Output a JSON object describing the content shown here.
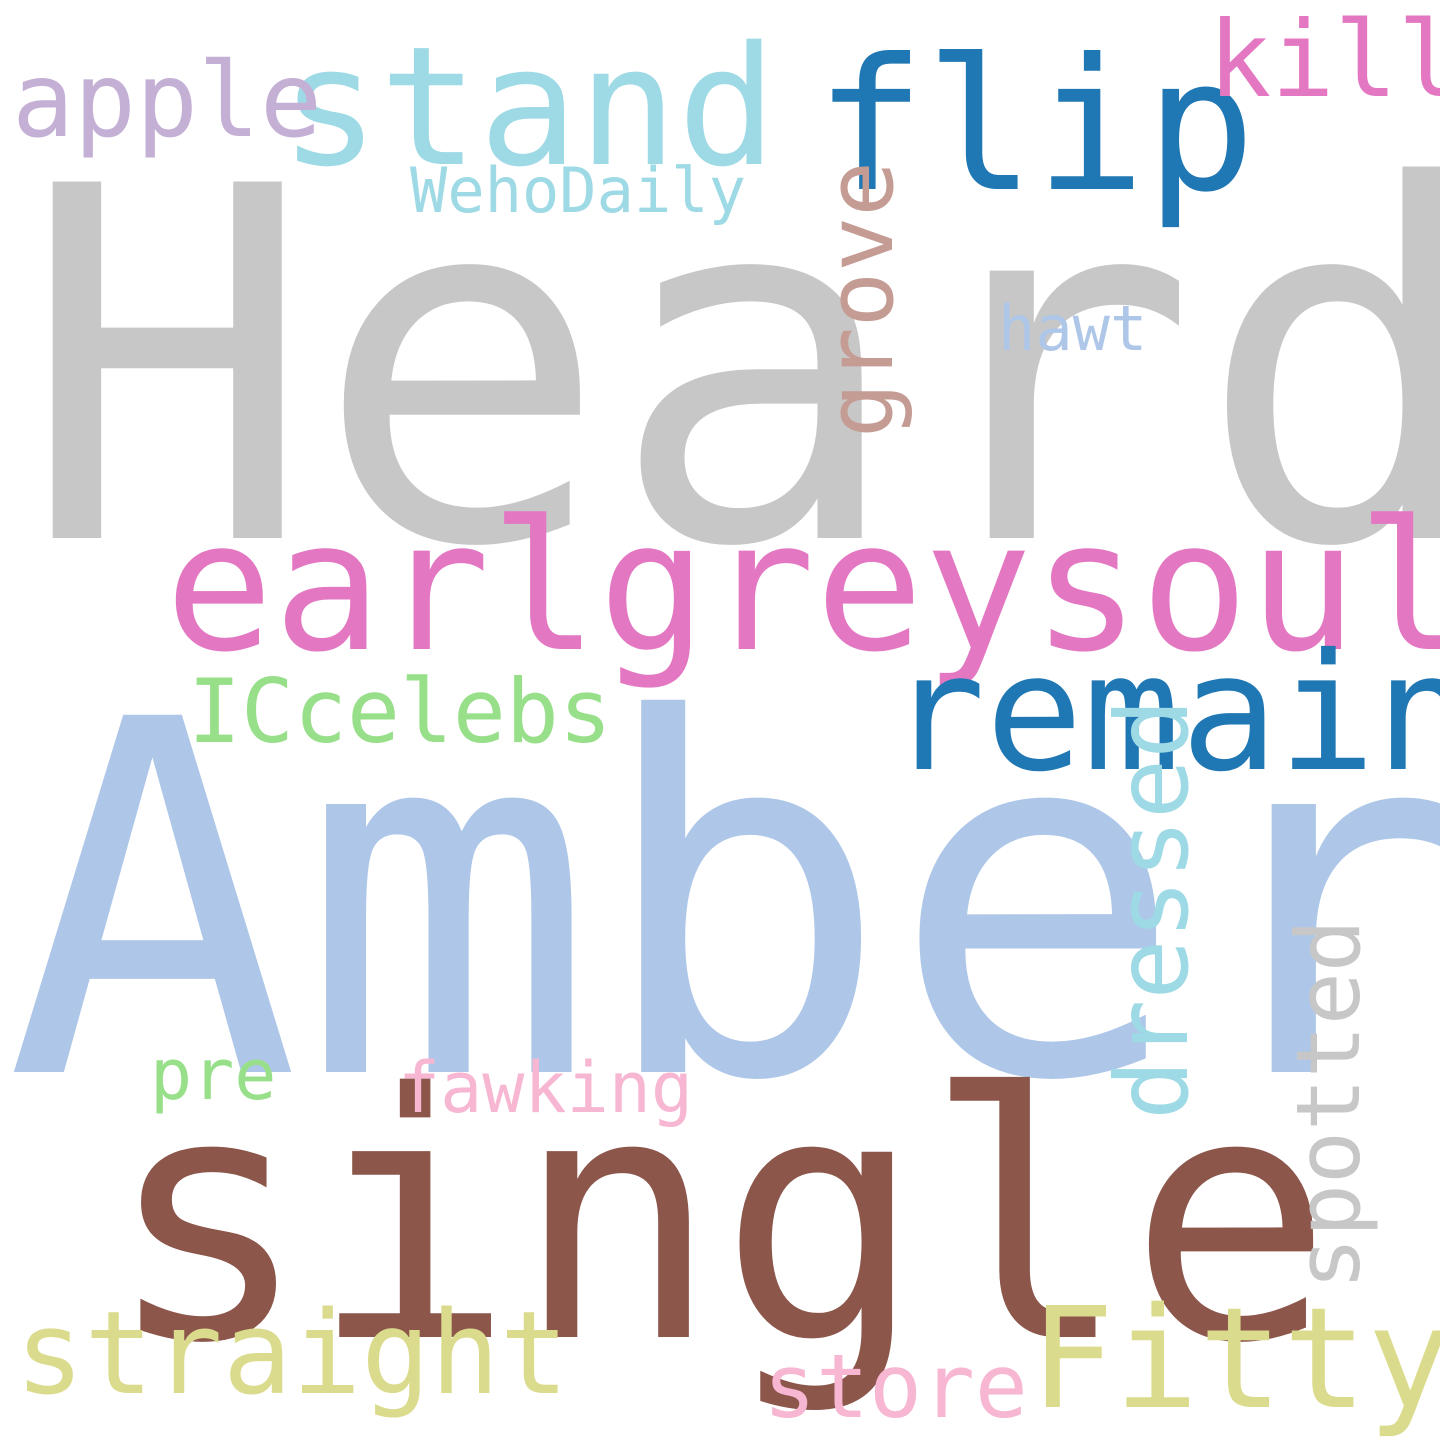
{
  "background": "#ffffff",
  "words": [
    {
      "id": "heard",
      "text": "Heard",
      "color": "#c7c7c7"
    },
    {
      "id": "amber",
      "text": "Amber",
      "color": "#aec7e8"
    },
    {
      "id": "single",
      "text": "single",
      "color": "#8c564b"
    },
    {
      "id": "earlgreysoul",
      "text": "earlgreysoul",
      "color": "#e377c2"
    },
    {
      "id": "remain",
      "text": "remain",
      "color": "#1f77b4"
    },
    {
      "id": "stand",
      "text": "stand",
      "color": "#9edae5"
    },
    {
      "id": "flip",
      "text": "flip",
      "color": "#1f77b4"
    },
    {
      "id": "kill",
      "text": "kill",
      "color": "#e377c2"
    },
    {
      "id": "apple",
      "text": "apple",
      "color": "#c5b0d5"
    },
    {
      "id": "wehodaily",
      "text": "WehoDaily",
      "color": "#9edae5"
    },
    {
      "id": "grove",
      "text": "grove",
      "color": "#c49c94"
    },
    {
      "id": "hawt",
      "text": "hawt",
      "color": "#aec7e8"
    },
    {
      "id": "iccelebs",
      "text": "ICcelebs",
      "color": "#98df8a"
    },
    {
      "id": "dressed",
      "text": "dressed",
      "color": "#9edae5"
    },
    {
      "id": "spotted",
      "text": "spotted",
      "color": "#c7c7c7"
    },
    {
      "id": "pre",
      "text": "pre",
      "color": "#98df8a"
    },
    {
      "id": "fawking",
      "text": "fawking",
      "color": "#f7b6d2"
    },
    {
      "id": "straight",
      "text": "straight",
      "color": "#dbdb8d"
    },
    {
      "id": "fitty",
      "text": "Fitty",
      "color": "#dbdb8d"
    },
    {
      "id": "store",
      "text": "store",
      "color": "#f7b6d2"
    }
  ]
}
